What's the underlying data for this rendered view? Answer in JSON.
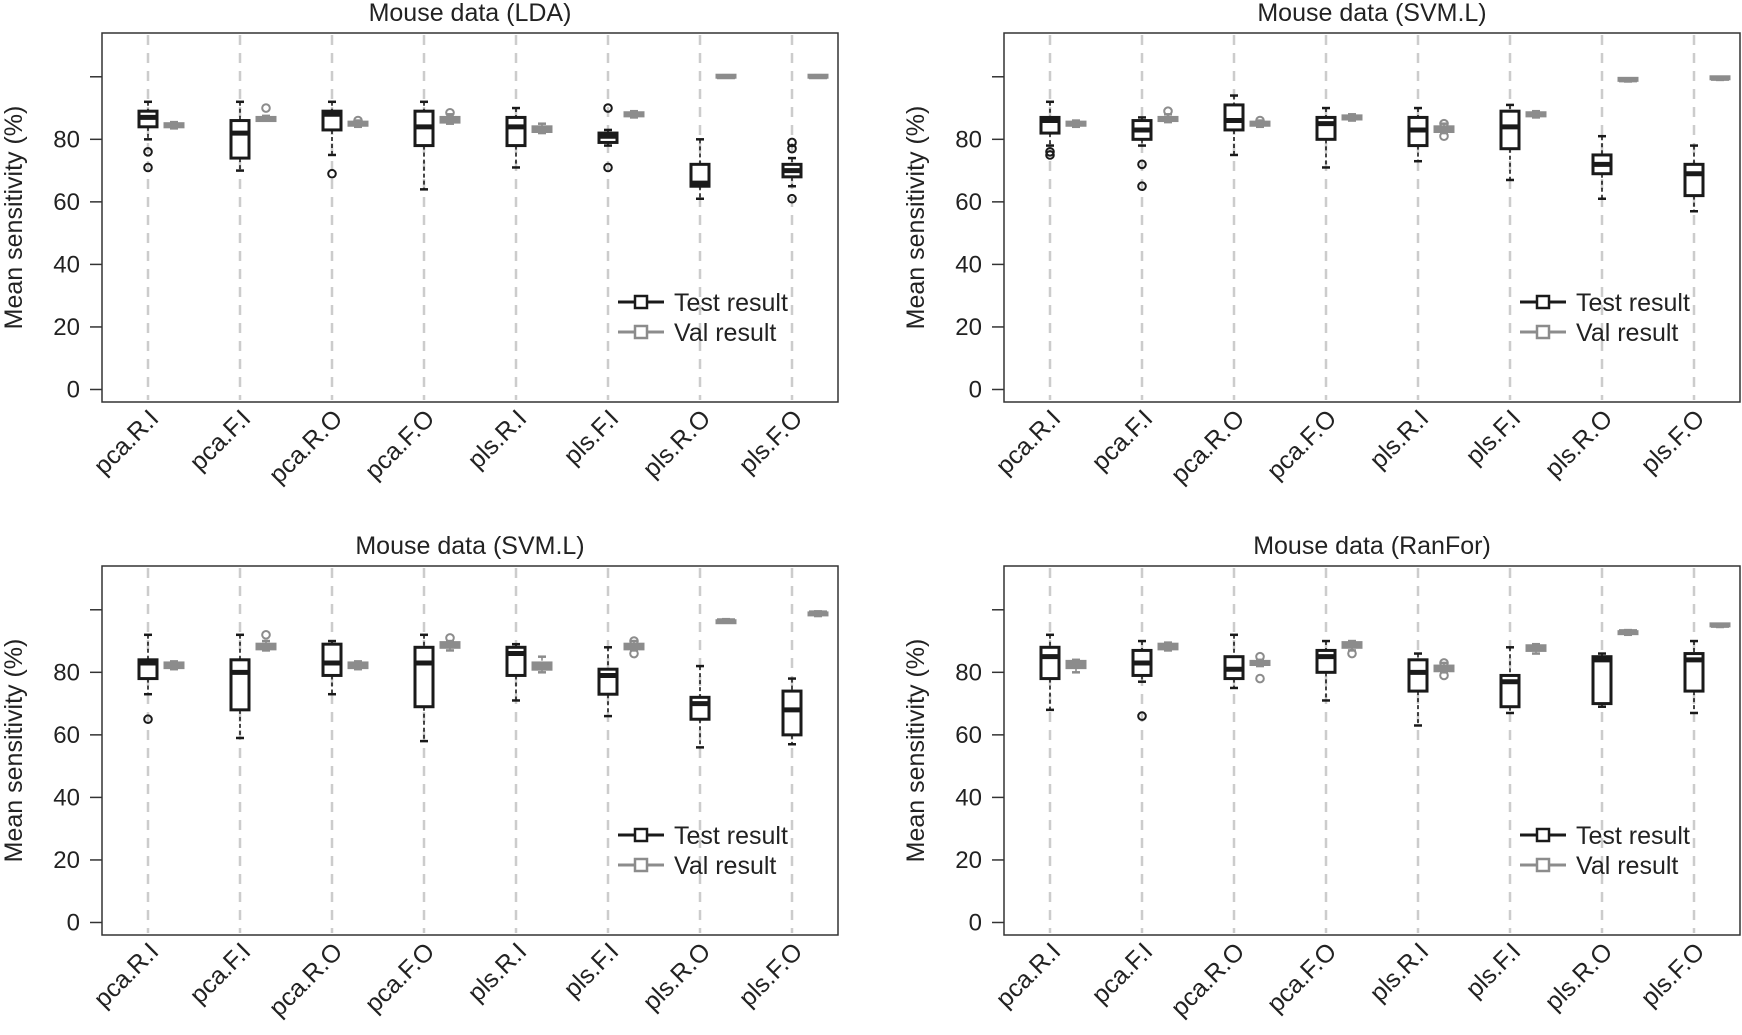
{
  "colors": {
    "test": "#1a1a1a",
    "val": "#8c8c8c",
    "grid": "#cccccc",
    "frame": "#333333"
  },
  "chart_data": [
    {
      "type": "box",
      "title": "Mouse data (LDA)",
      "ylabel": "Mean sensitivity (%)",
      "ylim": [
        -4,
        114
      ],
      "yticks": [
        0,
        20,
        40,
        60,
        80
      ],
      "categories": [
        "pca.R.I",
        "pca.F.I",
        "pca.R.O",
        "pca.F.O",
        "pls.R.I",
        "pls.F.I",
        "pls.R.O",
        "pls.F.O"
      ],
      "legend": {
        "position": "bottom-right",
        "entries": [
          "Test result",
          "Val result"
        ]
      },
      "series": [
        {
          "name": "Test result",
          "boxes": [
            {
              "whislo": 80,
              "q1": 84,
              "med": 87,
              "q3": 89,
              "whishi": 92,
              "fliers": [
                76,
                71
              ]
            },
            {
              "whislo": 70,
              "q1": 74,
              "med": 82,
              "q3": 86,
              "whishi": 92,
              "fliers": []
            },
            {
              "whislo": 75,
              "q1": 83,
              "med": 88,
              "q3": 89,
              "whishi": 92,
              "fliers": [
                69
              ]
            },
            {
              "whislo": 64,
              "q1": 78,
              "med": 84,
              "q3": 89,
              "whishi": 92,
              "fliers": []
            },
            {
              "whislo": 71,
              "q1": 78,
              "med": 84,
              "q3": 87,
              "whishi": 90,
              "fliers": []
            },
            {
              "whislo": 78,
              "q1": 79,
              "med": 81,
              "q3": 82,
              "whishi": 83,
              "fliers": [
                90,
                71
              ]
            },
            {
              "whislo": 61,
              "q1": 65,
              "med": 66,
              "q3": 72,
              "whishi": 80,
              "fliers": []
            },
            {
              "whislo": 65,
              "q1": 68,
              "med": 70,
              "q3": 72,
              "whishi": 74,
              "fliers": [
                79,
                77,
                61
              ]
            }
          ]
        },
        {
          "name": "Val result",
          "boxes": [
            {
              "whislo": 83.5,
              "q1": 84,
              "med": 84.5,
              "q3": 85,
              "whishi": 85.5,
              "fliers": []
            },
            {
              "whislo": 86,
              "q1": 86,
              "med": 86.5,
              "q3": 87,
              "whishi": 87.5,
              "fliers": [
                90
              ]
            },
            {
              "whislo": 84,
              "q1": 84.5,
              "med": 85,
              "q3": 85.5,
              "whishi": 86,
              "fliers": [
                86
              ]
            },
            {
              "whislo": 85,
              "q1": 85.5,
              "med": 86,
              "q3": 87,
              "whishi": 88,
              "fliers": [
                88.5
              ]
            },
            {
              "whislo": 82,
              "q1": 82.5,
              "med": 83,
              "q3": 84,
              "whishi": 85,
              "fliers": []
            },
            {
              "whislo": 87,
              "q1": 87.5,
              "med": 88,
              "q3": 88.5,
              "whishi": 89,
              "fliers": []
            },
            {
              "whislo": 100,
              "q1": 100,
              "med": 100,
              "q3": 100.5,
              "whishi": 100.5,
              "fliers": []
            },
            {
              "whislo": 100,
              "q1": 100,
              "med": 100,
              "q3": 100.5,
              "whishi": 100.5,
              "fliers": []
            }
          ]
        }
      ]
    },
    {
      "type": "box",
      "title": "Mouse data (SVM.L)",
      "ylabel": "Mean sensitivity (%)",
      "ylim": [
        -4,
        114
      ],
      "yticks": [
        0,
        20,
        40,
        60,
        80
      ],
      "categories": [
        "pca.R.I",
        "pca.F.I",
        "pca.R.O",
        "pca.F.O",
        "pls.R.I",
        "pls.F.I",
        "pls.R.O",
        "pls.F.O"
      ],
      "legend": {
        "position": "bottom-right",
        "entries": [
          "Test result",
          "Val result"
        ]
      },
      "series": [
        {
          "name": "Test result",
          "boxes": [
            {
              "whislo": 78,
              "q1": 82,
              "med": 86,
              "q3": 87,
              "whishi": 92,
              "fliers": [
                76,
                75
              ]
            },
            {
              "whislo": 78,
              "q1": 80,
              "med": 83,
              "q3": 86,
              "whishi": 87,
              "fliers": [
                72,
                65
              ]
            },
            {
              "whislo": 75,
              "q1": 83,
              "med": 86,
              "q3": 91,
              "whishi": 94,
              "fliers": []
            },
            {
              "whislo": 71,
              "q1": 80,
              "med": 85,
              "q3": 87,
              "whishi": 90,
              "fliers": []
            },
            {
              "whislo": 73,
              "q1": 78,
              "med": 83,
              "q3": 87,
              "whishi": 90,
              "fliers": []
            },
            {
              "whislo": 67,
              "q1": 77,
              "med": 84,
              "q3": 89,
              "whishi": 91,
              "fliers": []
            },
            {
              "whislo": 61,
              "q1": 69,
              "med": 72,
              "q3": 75,
              "whishi": 81,
              "fliers": []
            },
            {
              "whislo": 57,
              "q1": 62,
              "med": 69,
              "q3": 72,
              "whishi": 78,
              "fliers": []
            }
          ]
        },
        {
          "name": "Val result",
          "boxes": [
            {
              "whislo": 84,
              "q1": 84.5,
              "med": 85,
              "q3": 85.5,
              "whishi": 86,
              "fliers": []
            },
            {
              "whislo": 85.5,
              "q1": 86,
              "med": 86.5,
              "q3": 87,
              "whishi": 88,
              "fliers": [
                89
              ]
            },
            {
              "whislo": 84,
              "q1": 84.5,
              "med": 85,
              "q3": 85.5,
              "whishi": 86,
              "fliers": [
                86
              ]
            },
            {
              "whislo": 86,
              "q1": 86.5,
              "med": 87,
              "q3": 87.5,
              "whishi": 88,
              "fliers": []
            },
            {
              "whislo": 82,
              "q1": 82.5,
              "med": 83,
              "q3": 84,
              "whishi": 85,
              "fliers": [
                85,
                81
              ]
            },
            {
              "whislo": 87,
              "q1": 87.5,
              "med": 88,
              "q3": 88.5,
              "whishi": 89,
              "fliers": []
            },
            {
              "whislo": 98.5,
              "q1": 99,
              "med": 99,
              "q3": 99.5,
              "whishi": 99.5,
              "fliers": []
            },
            {
              "whislo": 99,
              "q1": 99.5,
              "med": 99.5,
              "q3": 100,
              "whishi": 100,
              "fliers": []
            }
          ]
        }
      ]
    },
    {
      "type": "box",
      "title": "Mouse data (SVM.L)",
      "ylabel": "Mean sensitivity (%)",
      "ylim": [
        -4,
        114
      ],
      "yticks": [
        0,
        20,
        40,
        60,
        80
      ],
      "categories": [
        "pca.R.I",
        "pca.F.I",
        "pca.R.O",
        "pca.F.O",
        "pls.R.I",
        "pls.F.I",
        "pls.R.O",
        "pls.F.O"
      ],
      "legend": {
        "position": "bottom-right",
        "entries": [
          "Test result",
          "Val result"
        ]
      },
      "series": [
        {
          "name": "Test result",
          "boxes": [
            {
              "whislo": 73,
              "q1": 78,
              "med": 83,
              "q3": 84,
              "whishi": 92,
              "fliers": [
                65
              ]
            },
            {
              "whislo": 59,
              "q1": 68,
              "med": 80,
              "q3": 84,
              "whishi": 92,
              "fliers": []
            },
            {
              "whislo": 73,
              "q1": 79,
              "med": 83,
              "q3": 89,
              "whishi": 90,
              "fliers": []
            },
            {
              "whislo": 58,
              "q1": 69,
              "med": 83,
              "q3": 88,
              "whishi": 92,
              "fliers": []
            },
            {
              "whislo": 71,
              "q1": 79,
              "med": 86,
              "q3": 88,
              "whishi": 89,
              "fliers": []
            },
            {
              "whislo": 66,
              "q1": 73,
              "med": 79,
              "q3": 81,
              "whishi": 88,
              "fliers": []
            },
            {
              "whislo": 56,
              "q1": 65,
              "med": 70,
              "q3": 72,
              "whishi": 82,
              "fliers": []
            },
            {
              "whislo": 57,
              "q1": 60,
              "med": 68,
              "q3": 74,
              "whishi": 78,
              "fliers": []
            }
          ]
        },
        {
          "name": "Val result",
          "boxes": [
            {
              "whislo": 81,
              "q1": 81.5,
              "med": 82,
              "q3": 83,
              "whishi": 83.5,
              "fliers": []
            },
            {
              "whislo": 87,
              "q1": 87.5,
              "med": 88,
              "q3": 89,
              "whishi": 90,
              "fliers": [
                92
              ]
            },
            {
              "whislo": 81,
              "q1": 81.5,
              "med": 82,
              "q3": 83,
              "whishi": 83.5,
              "fliers": []
            },
            {
              "whislo": 87,
              "q1": 88,
              "med": 89,
              "q3": 89.5,
              "whishi": 90,
              "fliers": [
                91
              ]
            },
            {
              "whislo": 80,
              "q1": 81,
              "med": 82,
              "q3": 83,
              "whishi": 85,
              "fliers": []
            },
            {
              "whislo": 87,
              "q1": 87.5,
              "med": 88,
              "q3": 89,
              "whishi": 90,
              "fliers": [
                90,
                86
              ]
            },
            {
              "whislo": 96,
              "q1": 96,
              "med": 96.5,
              "q3": 96.5,
              "whishi": 97,
              "fliers": []
            },
            {
              "whislo": 98,
              "q1": 98.5,
              "med": 99,
              "q3": 99,
              "whishi": 99.5,
              "fliers": []
            }
          ]
        }
      ]
    },
    {
      "type": "box",
      "title": "Mouse data (RanFor)",
      "ylabel": "Mean sensitivity (%)",
      "ylim": [
        -4,
        114
      ],
      "yticks": [
        0,
        20,
        40,
        60,
        80
      ],
      "categories": [
        "pca.R.I",
        "pca.F.I",
        "pca.R.O",
        "pca.F.O",
        "pls.R.I",
        "pls.F.I",
        "pls.R.O",
        "pls.F.O"
      ],
      "legend": {
        "position": "bottom-right",
        "entries": [
          "Test result",
          "Val result"
        ]
      },
      "series": [
        {
          "name": "Test result",
          "boxes": [
            {
              "whislo": 68,
              "q1": 78,
              "med": 85,
              "q3": 88,
              "whishi": 92,
              "fliers": []
            },
            {
              "whislo": 77,
              "q1": 79,
              "med": 83,
              "q3": 87,
              "whishi": 90,
              "fliers": [
                66
              ]
            },
            {
              "whislo": 75,
              "q1": 78,
              "med": 81,
              "q3": 85,
              "whishi": 92,
              "fliers": []
            },
            {
              "whislo": 71,
              "q1": 80,
              "med": 85,
              "q3": 87,
              "whishi": 90,
              "fliers": []
            },
            {
              "whislo": 63,
              "q1": 74,
              "med": 80,
              "q3": 84,
              "whishi": 86,
              "fliers": []
            },
            {
              "whislo": 67,
              "q1": 69,
              "med": 77,
              "q3": 79,
              "whishi": 88,
              "fliers": []
            },
            {
              "whislo": 69,
              "q1": 70,
              "med": 84,
              "q3": 85,
              "whishi": 86,
              "fliers": []
            },
            {
              "whislo": 67,
              "q1": 74,
              "med": 84,
              "q3": 86,
              "whishi": 90,
              "fliers": []
            }
          ]
        },
        {
          "name": "Val result",
          "boxes": [
            {
              "whislo": 80,
              "q1": 81.5,
              "med": 82.5,
              "q3": 83.5,
              "whishi": 84,
              "fliers": []
            },
            {
              "whislo": 87,
              "q1": 87.5,
              "med": 88.5,
              "q3": 89,
              "whishi": 89.5,
              "fliers": []
            },
            {
              "whislo": 82,
              "q1": 82.5,
              "med": 83,
              "q3": 83.5,
              "whishi": 84,
              "fliers": [
                85,
                78
              ]
            },
            {
              "whislo": 87,
              "q1": 88,
              "med": 89,
              "q3": 89.5,
              "whishi": 90,
              "fliers": [
                86
              ]
            },
            {
              "whislo": 80,
              "q1": 80.5,
              "med": 81,
              "q3": 82,
              "whishi": 83,
              "fliers": [
                83,
                79
              ]
            },
            {
              "whislo": 86,
              "q1": 87,
              "med": 88,
              "q3": 88.5,
              "whishi": 89,
              "fliers": []
            },
            {
              "whislo": 92,
              "q1": 92.5,
              "med": 93,
              "q3": 93,
              "whishi": 93.5,
              "fliers": []
            },
            {
              "whislo": 94.5,
              "q1": 95,
              "med": 95,
              "q3": 95.5,
              "whishi": 95.5,
              "fliers": []
            }
          ]
        }
      ]
    }
  ]
}
